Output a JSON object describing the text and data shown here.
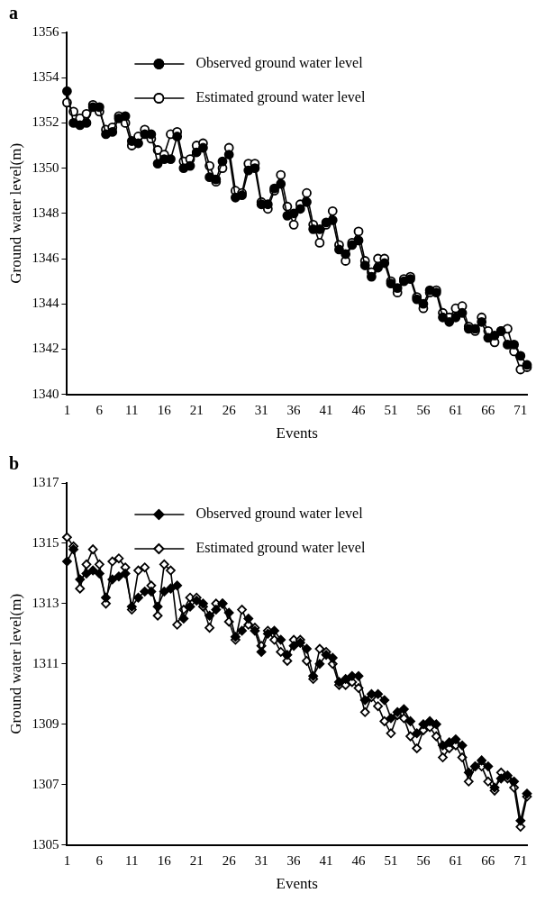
{
  "chart_data": [
    {
      "type": "line",
      "title": "a",
      "xlabel": "Events",
      "ylabel": "Ground water level(m)",
      "x": [
        1,
        2,
        3,
        4,
        5,
        6,
        7,
        8,
        9,
        10,
        11,
        12,
        13,
        14,
        15,
        16,
        17,
        18,
        19,
        20,
        21,
        22,
        23,
        24,
        25,
        26,
        27,
        28,
        29,
        30,
        31,
        32,
        33,
        34,
        35,
        36,
        37,
        38,
        39,
        40,
        41,
        42,
        43,
        44,
        45,
        46,
        47,
        48,
        49,
        50,
        51,
        52,
        53,
        54,
        55,
        56,
        57,
        58,
        59,
        60,
        61,
        62,
        63,
        64,
        65,
        66,
        67,
        68,
        69,
        70,
        71,
        72
      ],
      "xlim": [
        1,
        72
      ],
      "xticks": [
        1,
        6,
        11,
        16,
        21,
        26,
        31,
        36,
        41,
        46,
        51,
        56,
        61,
        66,
        71
      ],
      "ylim": [
        1340,
        1356
      ],
      "yticks": [
        1340,
        1342,
        1344,
        1346,
        1348,
        1350,
        1352,
        1354,
        1356
      ],
      "marker": "circle",
      "legend": "top",
      "grid": false,
      "series": [
        {
          "name": "Observed ground water level",
          "color": "#000000",
          "values": [
            1353.4,
            1352.0,
            1351.9,
            1352.0,
            1352.7,
            1352.7,
            1351.5,
            1351.6,
            1352.2,
            1352.3,
            1351.2,
            1351.1,
            1351.5,
            1351.5,
            1350.2,
            1350.4,
            1350.4,
            1351.4,
            1350.0,
            1350.1,
            1350.7,
            1350.9,
            1349.6,
            1349.5,
            1350.3,
            1350.6,
            1348.7,
            1348.8,
            1349.9,
            1350.0,
            1348.4,
            1348.4,
            1349.1,
            1349.3,
            1347.9,
            1348.0,
            1348.2,
            1348.5,
            1347.3,
            1347.3,
            1347.6,
            1347.7,
            1346.4,
            1346.2,
            1346.6,
            1346.8,
            1345.7,
            1345.2,
            1345.6,
            1345.8,
            1344.9,
            1344.7,
            1345.0,
            1345.1,
            1344.2,
            1344.0,
            1344.6,
            1344.5,
            1343.4,
            1343.2,
            1343.4,
            1343.6,
            1342.9,
            1342.9,
            1343.2,
            1342.5,
            1342.6,
            1342.8,
            1342.2,
            1342.2,
            1341.7,
            1341.3
          ]
        },
        {
          "name": "Estimated ground water level",
          "color": "#000000",
          "values": [
            1352.9,
            1352.5,
            1352.2,
            1352.4,
            1352.8,
            1352.5,
            1351.7,
            1351.8,
            1352.3,
            1352.0,
            1351.0,
            1351.4,
            1351.7,
            1351.3,
            1350.8,
            1350.6,
            1351.5,
            1351.6,
            1350.3,
            1350.4,
            1351.0,
            1351.1,
            1350.1,
            1349.4,
            1350.0,
            1350.9,
            1349.0,
            1348.9,
            1350.2,
            1350.2,
            1348.5,
            1348.2,
            1349.0,
            1349.7,
            1348.3,
            1347.5,
            1348.4,
            1348.9,
            1347.5,
            1346.7,
            1347.5,
            1348.1,
            1346.6,
            1345.9,
            1346.7,
            1347.2,
            1345.9,
            1345.4,
            1346.0,
            1346.0,
            1345.0,
            1344.5,
            1345.1,
            1345.2,
            1344.3,
            1343.8,
            1344.5,
            1344.6,
            1343.6,
            1343.4,
            1343.8,
            1343.9,
            1343.0,
            1342.8,
            1343.4,
            1342.8,
            1342.3,
            1342.8,
            1342.9,
            1341.9,
            1341.1,
            1341.2
          ]
        }
      ]
    },
    {
      "type": "line",
      "title": "b",
      "xlabel": "Events",
      "ylabel": "Ground water level(m)",
      "x": [
        1,
        2,
        3,
        4,
        5,
        6,
        7,
        8,
        9,
        10,
        11,
        12,
        13,
        14,
        15,
        16,
        17,
        18,
        19,
        20,
        21,
        22,
        23,
        24,
        25,
        26,
        27,
        28,
        29,
        30,
        31,
        32,
        33,
        34,
        35,
        36,
        37,
        38,
        39,
        40,
        41,
        42,
        43,
        44,
        45,
        46,
        47,
        48,
        49,
        50,
        51,
        52,
        53,
        54,
        55,
        56,
        57,
        58,
        59,
        60,
        61,
        62,
        63,
        64,
        65,
        66,
        67,
        68,
        69,
        70,
        71,
        72
      ],
      "xlim": [
        1,
        72
      ],
      "xticks": [
        1,
        6,
        11,
        16,
        21,
        26,
        31,
        36,
        41,
        46,
        51,
        56,
        61,
        66,
        71
      ],
      "ylim": [
        1305,
        1317
      ],
      "yticks": [
        1305,
        1307,
        1309,
        1311,
        1313,
        1315,
        1317
      ],
      "marker": "diamond",
      "legend": "top",
      "grid": false,
      "series": [
        {
          "name": "Observed ground water level",
          "color": "#000000",
          "values": [
            1314.4,
            1314.8,
            1313.8,
            1314.0,
            1314.1,
            1314.0,
            1313.2,
            1313.8,
            1313.9,
            1314.0,
            1312.9,
            1313.2,
            1313.4,
            1313.4,
            1312.9,
            1313.4,
            1313.5,
            1313.6,
            1312.5,
            1312.9,
            1313.1,
            1313.0,
            1312.6,
            1312.8,
            1313.0,
            1312.7,
            1311.9,
            1312.1,
            1312.5,
            1312.1,
            1311.4,
            1312.0,
            1312.1,
            1311.8,
            1311.3,
            1311.6,
            1311.7,
            1311.5,
            1310.6,
            1311.0,
            1311.3,
            1311.2,
            1310.4,
            1310.5,
            1310.6,
            1310.6,
            1309.8,
            1310.0,
            1310.0,
            1309.8,
            1309.2,
            1309.4,
            1309.5,
            1309.1,
            1308.7,
            1309.0,
            1309.1,
            1309.0,
            1308.3,
            1308.4,
            1308.5,
            1308.3,
            1307.4,
            1307.6,
            1307.8,
            1307.6,
            1306.9,
            1307.2,
            1307.3,
            1307.1,
            1305.8,
            1306.7
          ]
        },
        {
          "name": "Estimated ground water level",
          "color": "#000000",
          "values": [
            1315.2,
            1314.9,
            1313.5,
            1314.3,
            1314.8,
            1314.3,
            1313.0,
            1314.4,
            1314.5,
            1314.2,
            1312.8,
            1314.1,
            1314.2,
            1313.6,
            1312.6,
            1314.3,
            1314.1,
            1312.3,
            1312.8,
            1313.2,
            1313.2,
            1312.9,
            1312.2,
            1313.0,
            1313.0,
            1312.4,
            1311.8,
            1312.8,
            1312.3,
            1312.2,
            1311.6,
            1312.1,
            1311.8,
            1311.4,
            1311.1,
            1311.8,
            1311.8,
            1311.1,
            1310.5,
            1311.5,
            1311.4,
            1311.0,
            1310.3,
            1310.3,
            1310.4,
            1310.2,
            1309.4,
            1309.9,
            1309.6,
            1309.1,
            1308.7,
            1309.3,
            1309.2,
            1308.6,
            1308.2,
            1308.8,
            1308.9,
            1308.6,
            1307.9,
            1308.2,
            1308.3,
            1307.9,
            1307.1,
            1307.6,
            1307.6,
            1307.1,
            1306.8,
            1307.4,
            1307.2,
            1306.9,
            1305.6,
            1306.6
          ]
        }
      ]
    }
  ]
}
